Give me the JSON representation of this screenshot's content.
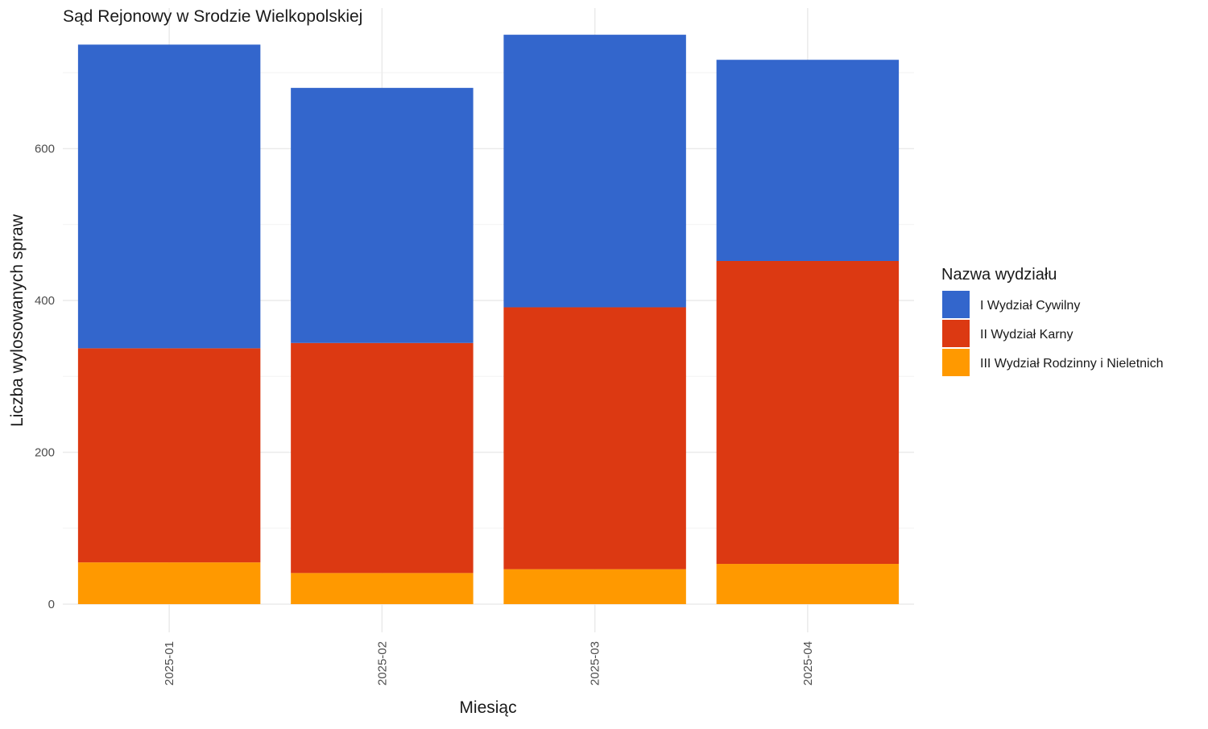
{
  "chart_data": {
    "type": "bar",
    "stacked": true,
    "title": "Sąd Rejonowy w Srodzie Wielkopolskiej",
    "xlabel": "Miesiąc",
    "ylabel": "Liczba wylosowanych spraw",
    "categories": [
      "2025-01",
      "2025-02",
      "2025-03",
      "2025-04"
    ],
    "ylim": [
      0,
      750
    ],
    "yticks": [
      0,
      200,
      400,
      600
    ],
    "grid": true,
    "legend": {
      "title": "Nazwa wydziału",
      "placement": "right"
    },
    "series": [
      {
        "name": "III Wydział Rodzinny i Nieletnich",
        "color": "#FF9900",
        "values": [
          55,
          41,
          46,
          53
        ]
      },
      {
        "name": "II Wydział Karny",
        "color": "#DC3912",
        "values": [
          282,
          303,
          345,
          399
        ]
      },
      {
        "name": "I Wydział Cywilny",
        "color": "#3366CC",
        "values": [
          400,
          336,
          359,
          265
        ]
      }
    ],
    "legend_order": [
      "I Wydział Cywilny",
      "II Wydział Karny",
      "III Wydział Rodzinny i Nieletnich"
    ]
  }
}
